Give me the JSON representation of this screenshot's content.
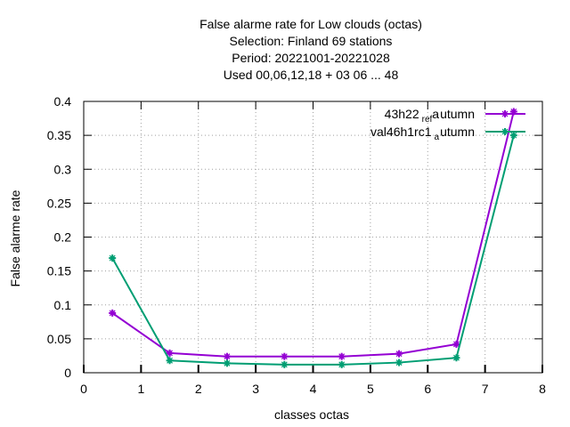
{
  "chart_data": {
    "type": "line",
    "title_lines": [
      "False alarme rate  for Low clouds (octas)",
      "Selection: Finland      69 stations",
      "Period: 20221001-20221028",
      "Used  00,06,12,18  + 03 06 ... 48"
    ],
    "xlabel": "classes octas",
    "ylabel": "False alarme rate",
    "xlim": [
      0,
      8
    ],
    "ylim": [
      0,
      0.4
    ],
    "xticks": [
      0,
      1,
      2,
      3,
      4,
      5,
      6,
      7,
      8
    ],
    "yticks": [
      0,
      0.05,
      0.1,
      0.15,
      0.2,
      0.25,
      0.3,
      0.35,
      0.4
    ],
    "xtick_labels": [
      "0",
      "1",
      "2",
      "3",
      "4",
      "5",
      "6",
      "7",
      "8"
    ],
    "ytick_labels": [
      "0",
      "0.05",
      "0.1",
      "0.15",
      "0.2",
      "0.25",
      "0.3",
      "0.35",
      "0.4"
    ],
    "grid": true,
    "legend_position": "top-right",
    "series": [
      {
        "name_main": "43h22",
        "name_sub1": "ref",
        "name_mid": "a",
        "name_tail": "utumn",
        "color": "#9400d3",
        "x": [
          0.5,
          1.5,
          2.5,
          3.5,
          4.5,
          5.5,
          6.5,
          7.5
        ],
        "y": [
          0.088,
          0.029,
          0.024,
          0.024,
          0.024,
          0.028,
          0.042,
          0.385
        ]
      },
      {
        "name_main": "val46h1rc1",
        "name_sub1": "",
        "name_mid": "a",
        "name_tail": "utumn",
        "color": "#009e73",
        "x": [
          0.5,
          1.5,
          2.5,
          3.5,
          4.5,
          5.5,
          6.5,
          7.5
        ],
        "y": [
          0.169,
          0.018,
          0.014,
          0.012,
          0.012,
          0.015,
          0.022,
          0.35
        ]
      }
    ]
  }
}
